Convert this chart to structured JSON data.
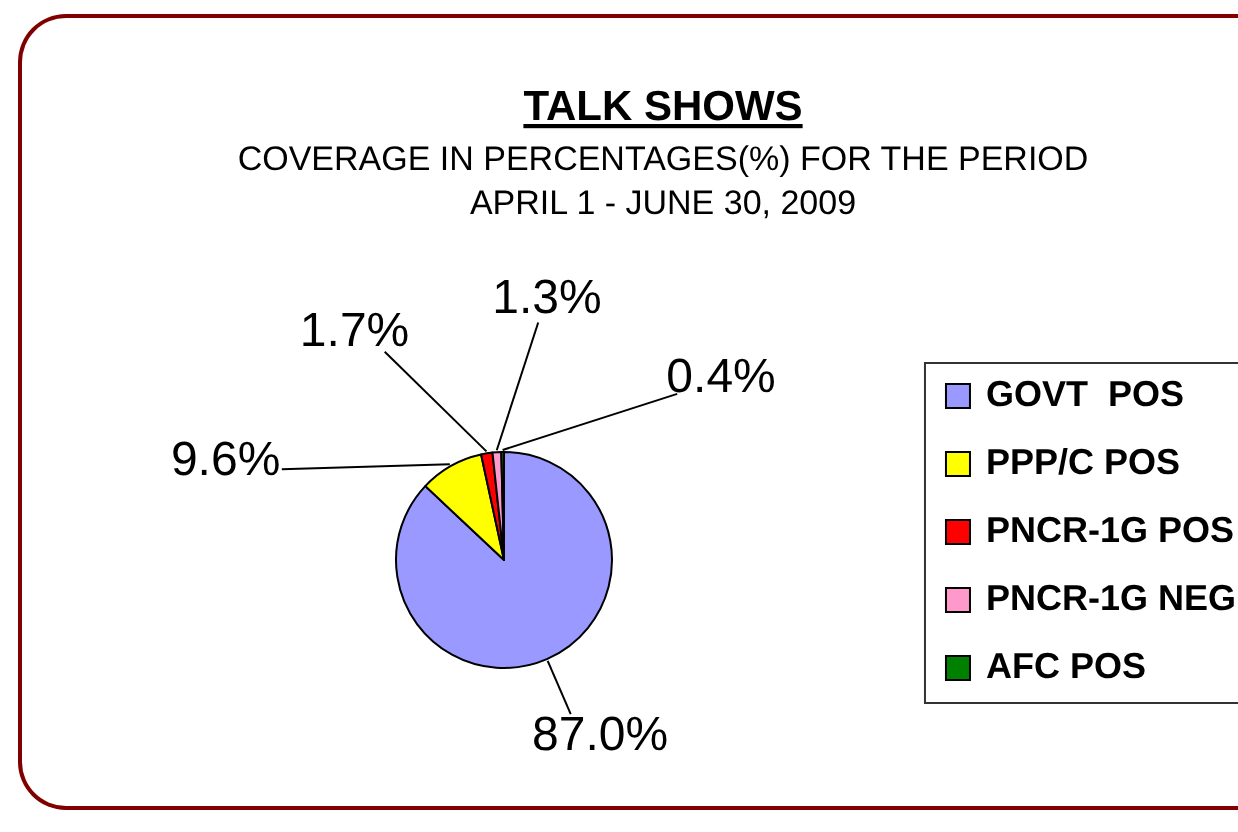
{
  "chart_data": {
    "type": "pie",
    "title": "TALK SHOWS",
    "subtitle": "COVERAGE IN PERCENTAGES(%) FOR THE PERIOD APRIL 1 - JUNE 30, 2009",
    "categories": [
      "GOVT  POS",
      "PPP/C POS",
      "PNCR-1G POS",
      "PNCR-1G NEG",
      "AFC POS"
    ],
    "values": [
      87.0,
      9.6,
      1.7,
      1.3,
      0.4
    ],
    "colors": [
      "#9999ff",
      "#ffff00",
      "#ff0000",
      "#ff99cc",
      "#008000"
    ],
    "value_labels": [
      "87.0%",
      "9.6%",
      "1.7%",
      "1.3%",
      "0.4%"
    ],
    "legend": "right"
  }
}
